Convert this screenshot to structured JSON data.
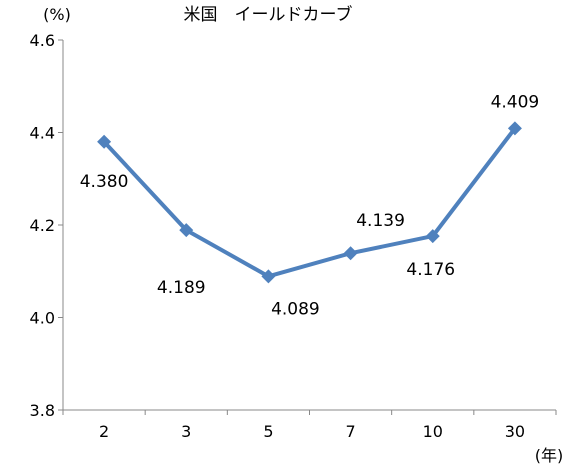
{
  "chart_data": {
    "type": "line",
    "title": "米国　イールドカーブ",
    "y_unit_label": "(%)",
    "x_unit_label": "(年)",
    "categories": [
      "2",
      "3",
      "5",
      "7",
      "10",
      "30"
    ],
    "series": [
      {
        "values": [
          4.38,
          4.189,
          4.089,
          4.139,
          4.176,
          4.409
        ],
        "labels": [
          "4.380",
          "4.189",
          "4.089",
          "4.139",
          "4.176",
          "4.409"
        ],
        "color": "#4f81bd"
      }
    ],
    "ylim": [
      3.8,
      4.6
    ],
    "yticks": [
      "3.8",
      "4.0",
      "4.2",
      "4.4",
      "4.6"
    ],
    "grid": false,
    "legend": "none"
  }
}
